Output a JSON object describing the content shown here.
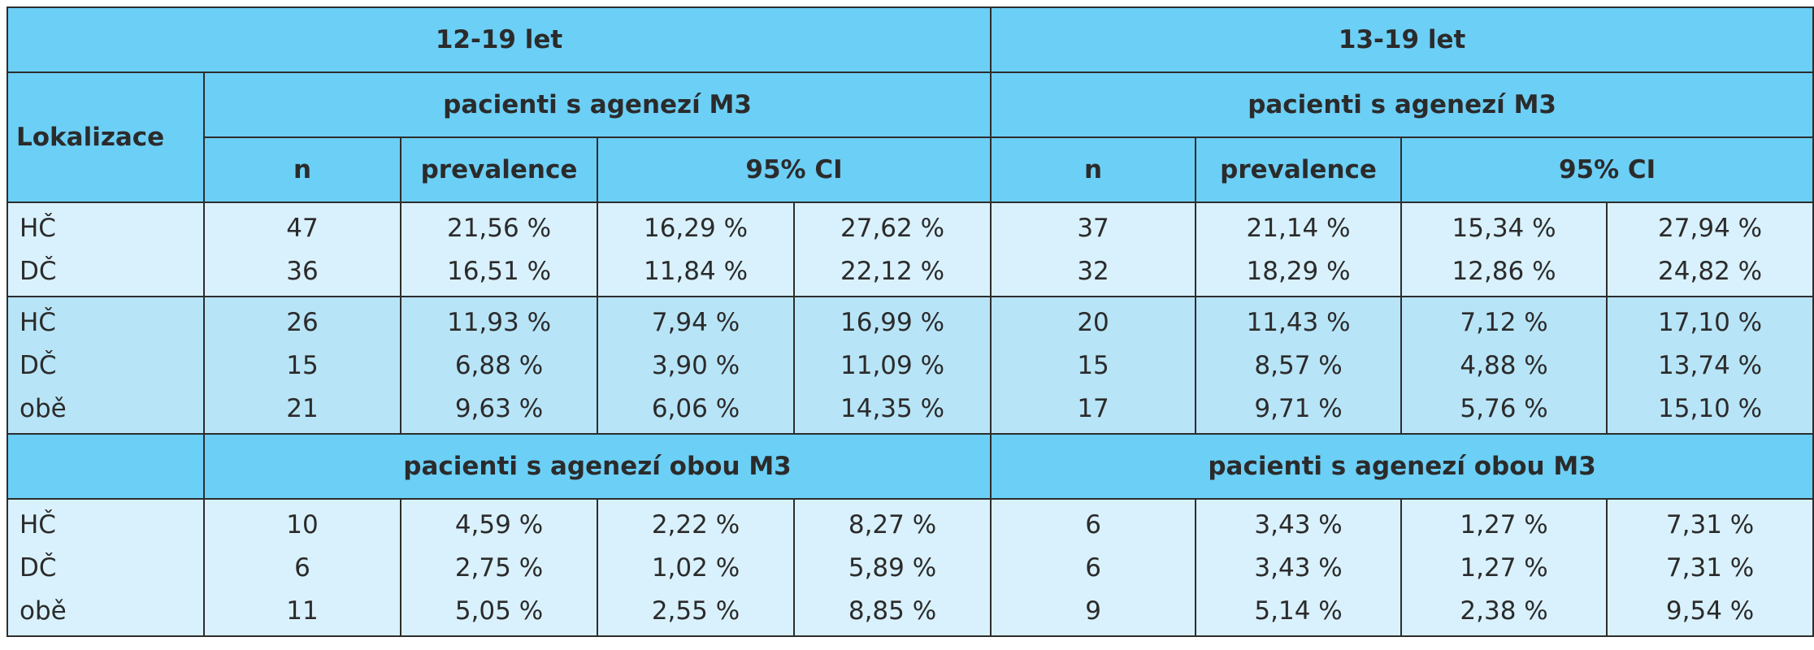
{
  "header": {
    "group_left": "12-19 let",
    "group_right": "13-19 let",
    "lokalizace": "Lokalizace",
    "subgroup1_left": "pacienti s agenezí M3",
    "subgroup1_right": "pacienti s agenezí M3",
    "col_n": "n",
    "col_prevalence": "prevalence",
    "col_ci": "95% CI"
  },
  "section1": [
    [
      "HČ",
      "47",
      "21,56 %",
      "16,29 %",
      "27,62 %",
      "37",
      "21,14 %",
      "15,34 %",
      "27,94 %"
    ],
    [
      "DČ",
      "36",
      "16,51 %",
      "11,84 %",
      "22,12 %",
      "32",
      "18,29 %",
      "12,86 %",
      "24,82 %"
    ]
  ],
  "section2": [
    [
      "HČ",
      "26",
      "11,93 %",
      "7,94 %",
      "16,99 %",
      "20",
      "11,43 %",
      "7,12 %",
      "17,10 %"
    ],
    [
      "DČ",
      "15",
      "6,88 %",
      "3,90 %",
      "11,09 %",
      "15",
      "8,57 %",
      "4,88 %",
      "13,74 %"
    ],
    [
      "obě",
      "21",
      "9,63 %",
      "6,06 %",
      "14,35 %",
      "17",
      "9,71 %",
      "5,76 %",
      "15,10 %"
    ]
  ],
  "subgroup2": {
    "left": "pacienti s agenezí obou M3",
    "right": "pacienti s agenezí obou M3"
  },
  "section3": [
    [
      "HČ",
      "10",
      "4,59 %",
      "2,22 %",
      "8,27 %",
      "6",
      "3,43 %",
      "1,27 %",
      "7,31 %"
    ],
    [
      "DČ",
      "6",
      "2,75 %",
      "1,02 %",
      "5,89 %",
      "6",
      "3,43 %",
      "1,27 %",
      "7,31 %"
    ],
    [
      "obě",
      "11",
      "5,05 %",
      "2,55 %",
      "8,85 %",
      "9",
      "5,14 %",
      "2,38 %",
      "9,54 %"
    ]
  ],
  "colors": {
    "header_bg": "#6ccff6",
    "cell_light": "#d9f1fc",
    "cell_dark": "#b8e4f7",
    "border": "#2d2d2d"
  }
}
